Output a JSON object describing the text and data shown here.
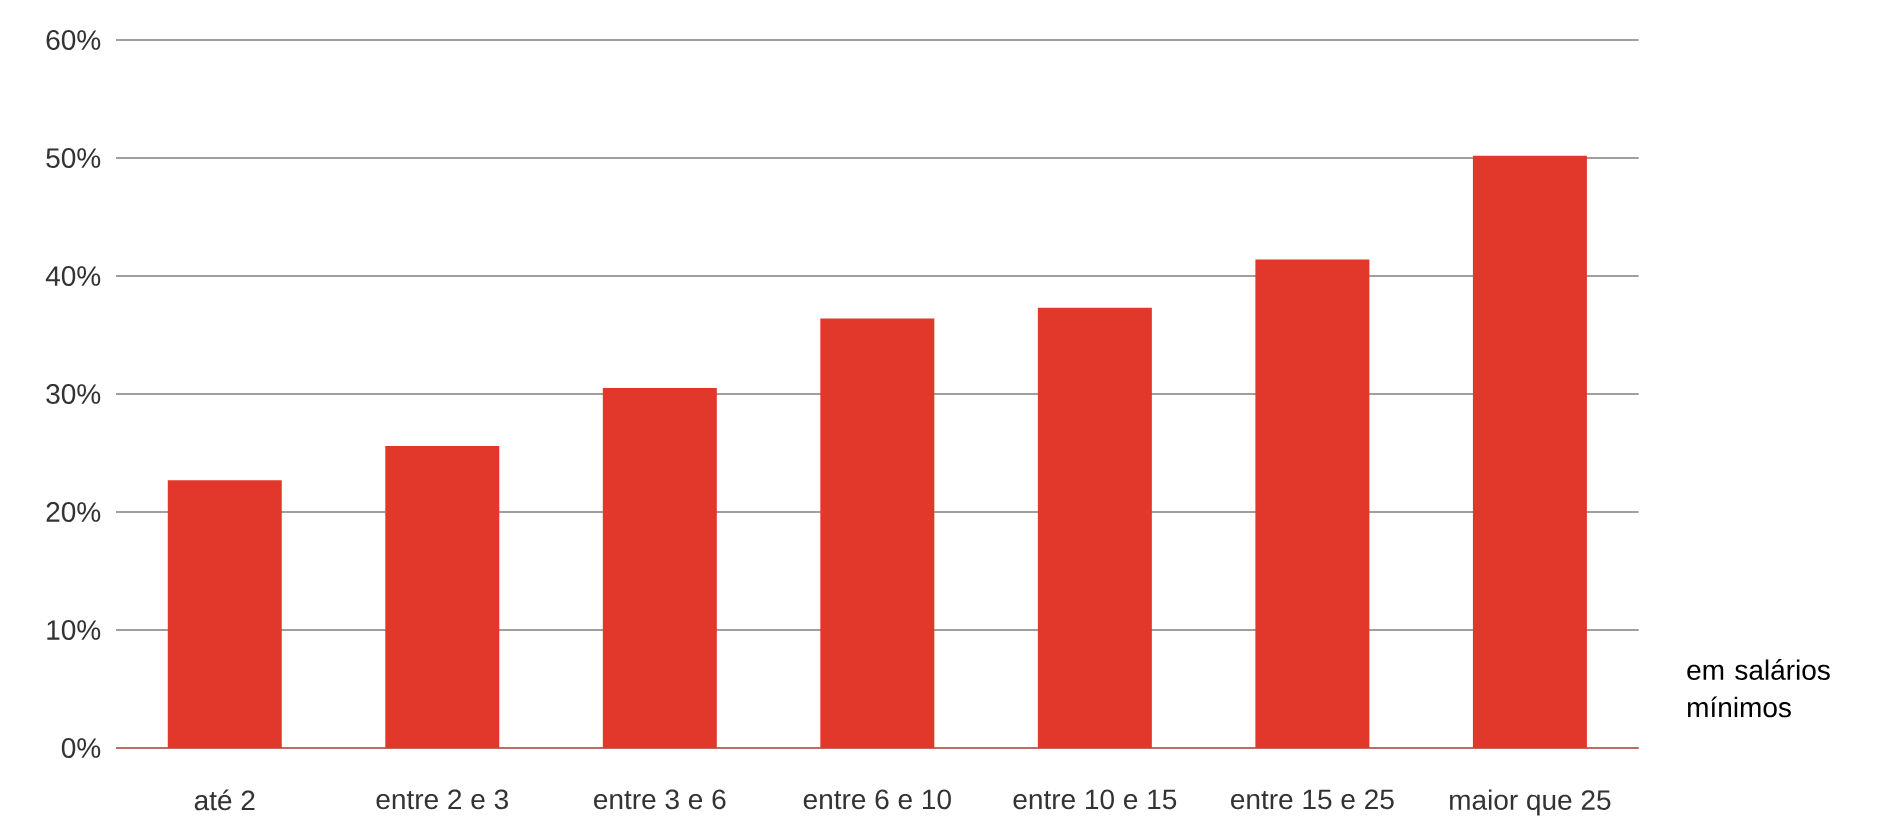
{
  "chart_data": {
    "type": "bar",
    "categories": [
      "até 2",
      "entre 2 e 3",
      "entre 3 e 6",
      "entre 6 e 10",
      "entre 10 e 15",
      "entre 15 e 25",
      "maior que 25"
    ],
    "values": [
      22.7,
      25.6,
      30.5,
      36.4,
      37.3,
      41.4,
      50.2
    ],
    "color": "#e2372b",
    "xlabel": "em salários mínimos",
    "ylim": [
      0,
      60
    ],
    "yticks": [
      {
        "value": 0,
        "label": "0%"
      },
      {
        "value": 10,
        "label": "10%"
      },
      {
        "value": 20,
        "label": "20%"
      },
      {
        "value": 30,
        "label": "30%"
      },
      {
        "value": 40,
        "label": "40%"
      },
      {
        "value": 50,
        "label": "50%"
      },
      {
        "value": 60,
        "label": "60%"
      }
    ],
    "grid": "y"
  }
}
